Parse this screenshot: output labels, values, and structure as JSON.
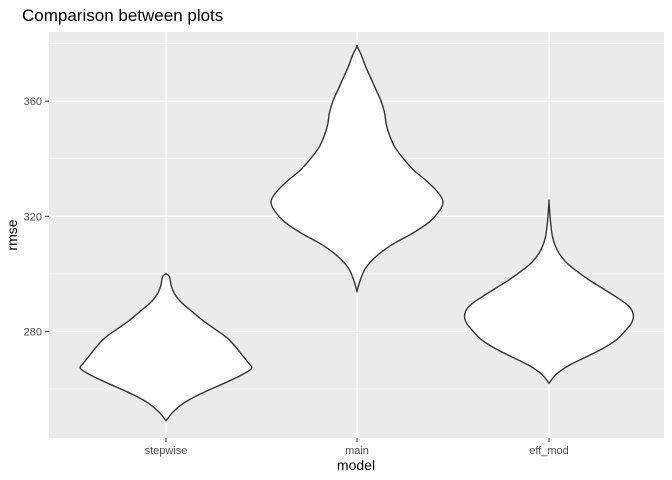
{
  "chart_data": {
    "type": "violin",
    "title": "Comparison between plots",
    "xlabel": "model",
    "ylabel": "rmse",
    "categories": [
      "stepwise",
      "main",
      "eff_mod"
    ],
    "y_ticks": [
      280,
      320,
      360
    ],
    "ylim": [
      243,
      384
    ],
    "grid": true,
    "colors": {
      "panel_bg": "#ebebeb",
      "grid_major": "#ffffff",
      "violin_fill": "#ffffff",
      "violin_stroke": "#333333"
    },
    "series": [
      {
        "category": "stepwise",
        "y_min": 249,
        "y_max": 300,
        "profile": [
          [
            249,
            0.0
          ],
          [
            252,
            0.08
          ],
          [
            255,
            0.2
          ],
          [
            258,
            0.38
          ],
          [
            261,
            0.6
          ],
          [
            264,
            0.82
          ],
          [
            267,
            0.99
          ],
          [
            269,
            0.96
          ],
          [
            272,
            0.88
          ],
          [
            275,
            0.8
          ],
          [
            278,
            0.7
          ],
          [
            281,
            0.56
          ],
          [
            284,
            0.42
          ],
          [
            287,
            0.3
          ],
          [
            290,
            0.18
          ],
          [
            293,
            0.1
          ],
          [
            296,
            0.06
          ],
          [
            299,
            0.04
          ],
          [
            300,
            0.0
          ]
        ]
      },
      {
        "category": "main",
        "y_min": 294,
        "y_max": 379,
        "profile": [
          [
            294,
            0.0
          ],
          [
            298,
            0.04
          ],
          [
            302,
            0.1
          ],
          [
            306,
            0.22
          ],
          [
            310,
            0.4
          ],
          [
            314,
            0.64
          ],
          [
            318,
            0.84
          ],
          [
            322,
            0.96
          ],
          [
            325,
            1.0
          ],
          [
            328,
            0.95
          ],
          [
            332,
            0.82
          ],
          [
            336,
            0.66
          ],
          [
            340,
            0.54
          ],
          [
            344,
            0.44
          ],
          [
            348,
            0.38
          ],
          [
            352,
            0.34
          ],
          [
            356,
            0.32
          ],
          [
            360,
            0.28
          ],
          [
            364,
            0.22
          ],
          [
            368,
            0.16
          ],
          [
            372,
            0.1
          ],
          [
            376,
            0.05
          ],
          [
            379,
            0.0
          ]
        ]
      },
      {
        "category": "eff_mod",
        "y_min": 262,
        "y_max": 325,
        "profile": [
          [
            262,
            0.0
          ],
          [
            265,
            0.08
          ],
          [
            268,
            0.22
          ],
          [
            271,
            0.42
          ],
          [
            274,
            0.62
          ],
          [
            277,
            0.78
          ],
          [
            280,
            0.88
          ],
          [
            283,
            0.96
          ],
          [
            286,
            0.98
          ],
          [
            289,
            0.92
          ],
          [
            292,
            0.78
          ],
          [
            295,
            0.62
          ],
          [
            298,
            0.46
          ],
          [
            301,
            0.32
          ],
          [
            304,
            0.2
          ],
          [
            307,
            0.12
          ],
          [
            310,
            0.07
          ],
          [
            313,
            0.04
          ],
          [
            316,
            0.025
          ],
          [
            320,
            0.012
          ],
          [
            325,
            0.0
          ]
        ]
      }
    ]
  }
}
